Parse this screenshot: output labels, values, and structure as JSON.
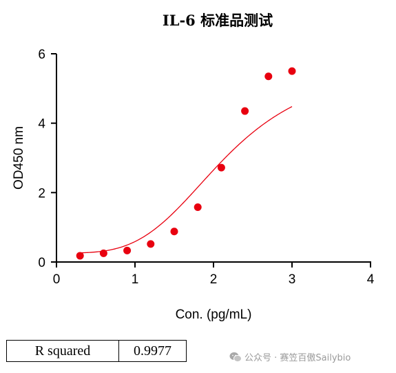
{
  "chart_data": {
    "type": "scatter",
    "title": "IL-6 标准品测试",
    "xlabel": "Con. (pg/mL)",
    "ylabel": "OD450 nm",
    "xlim": [
      0,
      4
    ],
    "ylim": [
      0,
      6
    ],
    "xticks": [
      "0",
      "1",
      "2",
      "3",
      "4"
    ],
    "yticks": [
      "0",
      "2",
      "4",
      "6"
    ],
    "series": [
      {
        "x": [
          0.3,
          0.6,
          0.9,
          1.2,
          1.5,
          1.8,
          2.1,
          2.4,
          2.7,
          3.0
        ],
        "y": [
          0.18,
          0.25,
          0.33,
          0.52,
          0.88,
          1.58,
          2.72,
          4.35,
          5.35,
          5.5
        ],
        "color": "#e8000f",
        "fit": "sigmoidal"
      }
    ],
    "fit_params": {
      "bottom": 0.26,
      "top": 5.75,
      "x50": 2.15,
      "slope": 3.6
    }
  },
  "stats_table": {
    "label": "R squared",
    "value": "0.9977"
  },
  "watermark": {
    "text": "公众号 · 赛笠百傲Sailybio",
    "icon": "wechat-icon"
  }
}
